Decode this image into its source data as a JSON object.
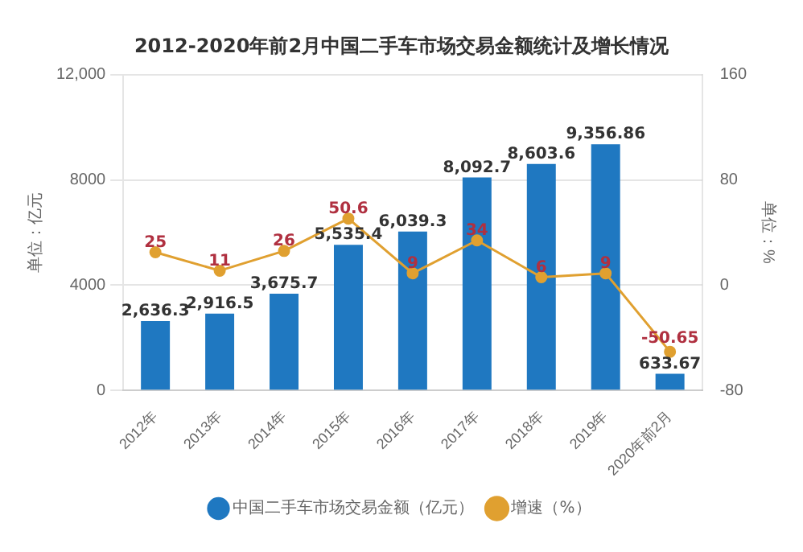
{
  "chart_data": {
    "type": "bar",
    "title": "2012-2020年前2月中国二手车市场交易金额统计及增长情况",
    "ylabel": "单位：亿元",
    "y2label": "单位：%",
    "categories": [
      "2012年",
      "2013年",
      "2014年",
      "2015年",
      "2016年",
      "2017年",
      "2018年",
      "2019年",
      "2020年前2月"
    ],
    "series": [
      {
        "name": "中国二手车市场交易金额（亿元）",
        "color": "#1f78c1",
        "values": [
          2636.3,
          2916.5,
          3675.7,
          5535.4,
          6039.3,
          8092.7,
          8603.6,
          9356.86,
          633.67
        ],
        "value_labels": [
          "2,636.3",
          "2,916.5",
          "3,675.7",
          "5,535.4",
          "6,039.3",
          "8,092.7",
          "8,603.6",
          "9,356.86",
          "633.67"
        ]
      },
      {
        "name": "增速（%）",
        "type": "line",
        "axis": "y2",
        "color": "#e0a030",
        "values": [
          25,
          11,
          26,
          50.6,
          9,
          34,
          6,
          9,
          -50.65
        ],
        "value_labels": [
          "25",
          "11",
          "26",
          "50.6",
          "9",
          "34",
          "6",
          "9",
          "-50.65"
        ]
      }
    ],
    "ylim": [
      0,
      12000
    ],
    "yticks": [
      0,
      4000,
      8000,
      {
        "value": 12000,
        "label": "12,000"
      }
    ],
    "y2lim": [
      -80,
      160
    ],
    "y2ticks": [
      -80,
      0,
      80,
      160
    ],
    "grid": "y",
    "legend": "bottom",
    "marker": "circle"
  }
}
